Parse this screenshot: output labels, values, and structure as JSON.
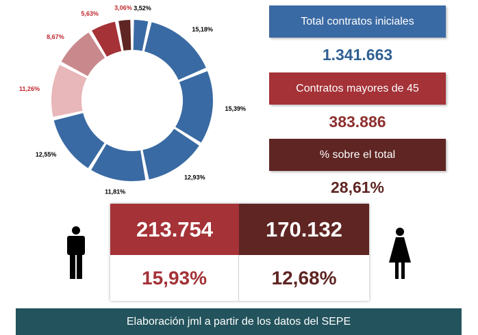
{
  "chart_data": {
    "type": "pie",
    "subtype": "donut",
    "values": [
      3.52,
      15.18,
      15.39,
      12.93,
      11.81,
      12.55,
      11.26,
      8.67,
      5.63,
      3.06
    ],
    "labels": [
      "3,52%",
      "15,18%",
      "15,39%",
      "12,93%",
      "11,81%",
      "12,55%",
      "11,26%",
      "8,67%",
      "5,63%",
      "3,06%"
    ],
    "colors": [
      "#3a6aa3",
      "#3a6aa3",
      "#3a6aa3",
      "#3a6aa3",
      "#3a6aa3",
      "#3a6aa3",
      "#e8b7b9",
      "#c9898c",
      "#a43237",
      "#5e2523"
    ],
    "label_colors": [
      "#000000",
      "#000000",
      "#000000",
      "#000000",
      "#000000",
      "#000000",
      "#c0282e",
      "#c0282e",
      "#c0282e",
      "#c0282e"
    ]
  },
  "kpis": [
    {
      "label": "Total contratos iniciales",
      "value": "1.341.663",
      "box_color": "#3a6aa3",
      "value_color": "#2f5f92"
    },
    {
      "label": "Contratos mayores de 45",
      "value": "383.886",
      "box_color": "#a43237",
      "value_color": "#8e2f2f"
    },
    {
      "label": "% sobre el total",
      "value": "28,61%",
      "box_color": "#5e2523",
      "value_color": "#5e2523"
    }
  ],
  "gender": {
    "men": {
      "count": "213.754",
      "pct": "15,93%",
      "color": "#a43237",
      "icon": "man-icon"
    },
    "women": {
      "count": "170.132",
      "pct": "12,68%",
      "color": "#5e2523",
      "icon": "woman-icon"
    }
  },
  "footer": {
    "text": "Elaboración jml a partir de los datos del SEPE",
    "color": "#23535c"
  }
}
